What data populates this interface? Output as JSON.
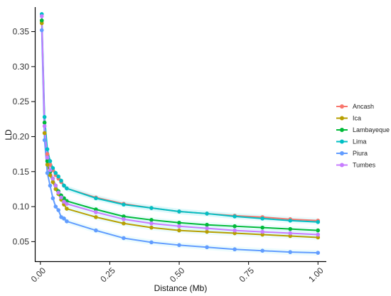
{
  "chart_data": {
    "type": "line",
    "xlabel": "Distance (Mb)",
    "ylabel": "LD",
    "xlim": [
      -0.02,
      1.03
    ],
    "ylim": [
      0.022,
      0.385
    ],
    "x_ticks": [
      {
        "value": 0.0,
        "label": "0.00"
      },
      {
        "value": 0.25,
        "label": "0.25"
      },
      {
        "value": 0.5,
        "label": "0.50"
      },
      {
        "value": 0.75,
        "label": "0.75"
      },
      {
        "value": 1.0,
        "label": "1.00"
      }
    ],
    "y_ticks": [
      {
        "value": 0.05,
        "label": "0.05"
      },
      {
        "value": 0.1,
        "label": "0.10"
      },
      {
        "value": 0.15,
        "label": "0.15"
      },
      {
        "value": 0.2,
        "label": "0.20"
      },
      {
        "value": 0.25,
        "label": "0.25"
      },
      {
        "value": 0.3,
        "label": "0.30"
      },
      {
        "value": 0.35,
        "label": "0.35"
      }
    ],
    "grid": false,
    "legend_position": "right",
    "series": [
      {
        "name": "Ancash",
        "color": "#F8766D",
        "x": [
          0.005,
          0.015,
          0.025,
          0.035,
          0.045,
          0.055,
          0.065,
          0.075,
          0.085,
          0.095,
          0.2,
          0.3,
          0.4,
          0.5,
          0.6,
          0.7,
          0.8,
          0.9,
          1.0
        ],
        "y": [
          0.365,
          0.205,
          0.175,
          0.16,
          0.152,
          0.145,
          0.14,
          0.135,
          0.13,
          0.126,
          0.113,
          0.104,
          0.098,
          0.093,
          0.09,
          0.087,
          0.085,
          0.082,
          0.08
        ]
      },
      {
        "name": "Ica",
        "color": "#B79F00",
        "x": [
          0.005,
          0.015,
          0.025,
          0.035,
          0.045,
          0.055,
          0.065,
          0.075,
          0.085,
          0.095,
          0.2,
          0.3,
          0.4,
          0.5,
          0.6,
          0.7,
          0.8,
          0.9,
          1.0
        ],
        "y": [
          0.362,
          0.205,
          0.16,
          0.145,
          0.135,
          0.125,
          0.118,
          0.11,
          0.103,
          0.097,
          0.085,
          0.076,
          0.07,
          0.066,
          0.064,
          0.062,
          0.06,
          0.058,
          0.056
        ]
      },
      {
        "name": "Lambayeque",
        "color": "#00BA38",
        "x": [
          0.005,
          0.015,
          0.025,
          0.035,
          0.045,
          0.055,
          0.065,
          0.075,
          0.085,
          0.095,
          0.2,
          0.3,
          0.4,
          0.5,
          0.6,
          0.7,
          0.8,
          0.9,
          1.0
        ],
        "y": [
          0.366,
          0.22,
          0.165,
          0.15,
          0.14,
          0.13,
          0.122,
          0.116,
          0.112,
          0.108,
          0.096,
          0.086,
          0.081,
          0.077,
          0.074,
          0.072,
          0.07,
          0.068,
          0.066
        ]
      },
      {
        "name": "Lima",
        "color": "#00BFC4",
        "x": [
          0.005,
          0.015,
          0.025,
          0.035,
          0.045,
          0.055,
          0.065,
          0.075,
          0.085,
          0.095,
          0.2,
          0.3,
          0.4,
          0.5,
          0.6,
          0.7,
          0.8,
          0.9,
          1.0
        ],
        "y": [
          0.375,
          0.228,
          0.182,
          0.165,
          0.155,
          0.148,
          0.143,
          0.137,
          0.13,
          0.126,
          0.112,
          0.103,
          0.098,
          0.093,
          0.09,
          0.086,
          0.083,
          0.08,
          0.078
        ]
      },
      {
        "name": "Piura",
        "color": "#619CFF",
        "x": [
          0.005,
          0.015,
          0.025,
          0.035,
          0.045,
          0.055,
          0.065,
          0.075,
          0.085,
          0.095,
          0.2,
          0.3,
          0.4,
          0.5,
          0.6,
          0.7,
          0.8,
          0.9,
          1.0
        ],
        "y": [
          0.352,
          0.195,
          0.148,
          0.13,
          0.112,
          0.1,
          0.095,
          0.085,
          0.083,
          0.079,
          0.066,
          0.055,
          0.049,
          0.045,
          0.042,
          0.039,
          0.037,
          0.035,
          0.034
        ]
      },
      {
        "name": "Tumbes",
        "color": "#C77CFF",
        "x": [
          0.005,
          0.015,
          0.025,
          0.035,
          0.045,
          0.055,
          0.065,
          0.075,
          0.085,
          0.095,
          0.2,
          0.3,
          0.4,
          0.5,
          0.6,
          0.7,
          0.8,
          0.9,
          1.0
        ],
        "y": [
          0.372,
          0.215,
          0.17,
          0.152,
          0.14,
          0.13,
          0.12,
          0.113,
          0.107,
          0.104,
          0.092,
          0.082,
          0.076,
          0.072,
          0.069,
          0.066,
          0.064,
          0.062,
          0.06
        ]
      }
    ]
  }
}
